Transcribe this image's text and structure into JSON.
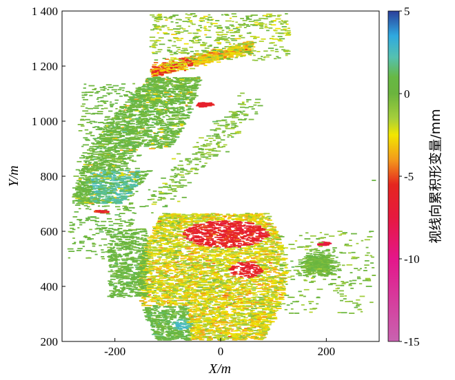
{
  "chart_data": {
    "type": "heatmap",
    "title": "",
    "xlabel": "X/m",
    "ylabel": "Y/m",
    "xlim": [
      -300,
      300
    ],
    "ylim": [
      200,
      1400
    ],
    "x_ticks": [
      -200,
      0,
      200
    ],
    "x_tick_labels": [
      "-200",
      "0",
      "200"
    ],
    "y_ticks": [
      200,
      400,
      600,
      800,
      1000,
      1200,
      1400
    ],
    "y_tick_labels": [
      "200",
      "400",
      "600",
      "800",
      "1 000",
      "1 200",
      "1 400"
    ],
    "grid": false,
    "colorbar": {
      "label": "视线向累积形变量/mm",
      "range": [
        -15,
        5
      ],
      "ticks": [
        5,
        0,
        -5,
        -10,
        -15
      ],
      "tick_labels": [
        "5",
        "0",
        "-5",
        "-10",
        "-15"
      ],
      "colormap": [
        {
          "value": 5,
          "color": "#2b3f9a"
        },
        {
          "value": 3.5,
          "color": "#2fa9e0"
        },
        {
          "value": 2.2,
          "color": "#55c1b0"
        },
        {
          "value": 1,
          "color": "#67b844"
        },
        {
          "value": 0,
          "color": "#6bb43e"
        },
        {
          "value": -1.5,
          "color": "#a6cf3b"
        },
        {
          "value": -2.5,
          "color": "#f2e600"
        },
        {
          "value": -4,
          "color": "#f39a1b"
        },
        {
          "value": -5.5,
          "color": "#e5261f"
        },
        {
          "value": -7.5,
          "color": "#e6193f"
        },
        {
          "value": -10,
          "color": "#e4168a"
        },
        {
          "value": -15,
          "color": "#c863b0"
        }
      ]
    },
    "regions": [
      {
        "name": "north-west-stable-zone",
        "x_range": [
          -290,
          -80
        ],
        "y_range": [
          700,
          1160
        ],
        "mean_deformation": 0.5
      },
      {
        "name": "uplift-patch",
        "x_center": -205,
        "y_center": 740,
        "mean_deformation": 3
      },
      {
        "name": "north-subsidence-band",
        "x_center": -75,
        "y_center": 1210,
        "mean_deformation": -4
      },
      {
        "name": "north-small-red-patch",
        "x_center": -30,
        "y_center": 1060,
        "mean_deformation": -6
      },
      {
        "name": "south-subsidence-zone",
        "x_range": [
          -160,
          110
        ],
        "y_range": [
          205,
          660
        ],
        "mean_deformation": -3
      },
      {
        "name": "south-red-core",
        "x_center": 20,
        "y_center": 590,
        "mean_deformation": -6.5
      },
      {
        "name": "east-patch",
        "x_center": 190,
        "y_center": 500,
        "mean_deformation": 0
      }
    ]
  }
}
